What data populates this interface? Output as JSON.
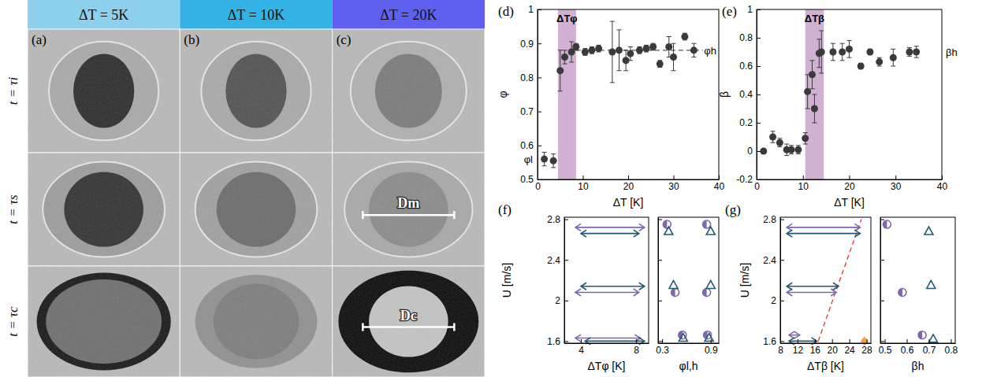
{
  "photos": {
    "columns": [
      {
        "label": "(a)",
        "title": "ΔT = 5K",
        "color": "#8dd0ee"
      },
      {
        "label": "(b)",
        "title": "ΔT = 10K",
        "color": "#33b2e5"
      },
      {
        "label": "(c)",
        "title": "ΔT = 20K",
        "color": "#5f5ff0",
        "cells": [
          null,
          "Dm",
          "Dc"
        ]
      }
    ],
    "rows": [
      "t = τi",
      "t = τs",
      "t = τc"
    ]
  },
  "chart_data": [
    {
      "type": "scatter",
      "panel": "(d)",
      "x_label": "ΔT [K]",
      "y_label": "φ",
      "xlim": [
        0,
        40
      ],
      "xticks": [
        0,
        10,
        20,
        30,
        40
      ],
      "ylim": [
        0.5,
        1
      ],
      "yticks": [
        0.5,
        0.6,
        0.7,
        0.8,
        0.9,
        1
      ],
      "band": {
        "range": [
          4.5,
          8.5
        ],
        "label": "ΔTφ",
        "color": "#c9a3c9"
      },
      "levels": {
        "low": {
          "label": "φl",
          "value": 0.56
        },
        "high": {
          "label": "φh",
          "value": 0.88,
          "line_style": "dashed",
          "range": [
            8.5,
            36.5
          ]
        }
      },
      "series": [
        {
          "color": "#3a3a3a",
          "marker": "circle",
          "x": [
            1.5,
            3.5,
            5,
            6,
            7.5,
            8.5,
            10.5,
            12,
            13.5,
            16.5,
            18,
            19.5,
            20.5,
            22.5,
            24,
            25.5,
            27,
            29,
            30,
            32.5,
            34.5
          ],
          "values": [
            0.56,
            0.555,
            0.82,
            0.86,
            0.875,
            0.89,
            0.875,
            0.88,
            0.885,
            0.875,
            0.88,
            0.85,
            0.87,
            0.88,
            0.885,
            0.89,
            0.84,
            0.89,
            0.86,
            0.92,
            0.88
          ],
          "errors": [
            0.02,
            0.02,
            0.06,
            0.02,
            0.03,
            0.01,
            0.01,
            0.01,
            0.01,
            0.09,
            0.06,
            0.03,
            0.02,
            0.01,
            0.01,
            0.01,
            0.01,
            0.03,
            0.04,
            0.01,
            0.02
          ]
        }
      ]
    },
    {
      "type": "scatter",
      "panel": "(e)",
      "x_label": "ΔT [K]",
      "y_label": "β",
      "xlim": [
        0,
        40
      ],
      "xticks": [
        0,
        10,
        20,
        30,
        40
      ],
      "ylim": [
        -0.2,
        1
      ],
      "yticks": [
        -0.2,
        0,
        0.2,
        0.4,
        0.6,
        0.8,
        1
      ],
      "band": {
        "range": [
          10.5,
          14.5
        ],
        "label": "ΔTβ",
        "color": "#c9a3c9"
      },
      "levels": {
        "high": {
          "label": "βh",
          "value": 0.7
        }
      },
      "series": [
        {
          "color": "#3a3a3a",
          "marker": "circle",
          "x": [
            1.5,
            3.5,
            5,
            6.5,
            7.5,
            9,
            10.5,
            11,
            12,
            12.5,
            13.5,
            14,
            16.5,
            18.5,
            20,
            22.5,
            24.5,
            26.5,
            29.5,
            33,
            34.5
          ],
          "values": [
            0,
            0.1,
            0.06,
            0.01,
            0.01,
            0.01,
            0.09,
            0.42,
            0.54,
            0.3,
            0.69,
            0.7,
            0.7,
            0.7,
            0.72,
            0.6,
            0.7,
            0.63,
            0.66,
            0.7,
            0.7
          ],
          "errors": [
            0.01,
            0.04,
            0.03,
            0.04,
            0.03,
            0.03,
            0.04,
            0.12,
            0.1,
            0.1,
            0.1,
            0.15,
            0.06,
            0.06,
            0.06,
            0.02,
            0.02,
            0.03,
            0.06,
            0.03,
            0.04
          ]
        }
      ]
    },
    {
      "type": "range",
      "panel": "(f)",
      "x_label": "ΔTφ [K]",
      "y_label": "U [m/s]",
      "xlim": [
        2.8,
        8.9
      ],
      "xticks": [
        4,
        8
      ],
      "ylim": [
        1.58,
        2.82
      ],
      "yticks": [
        1.6,
        2,
        2.4,
        2.8
      ],
      "series": [
        {
          "color": "#7f66b0",
          "marker": "double_arrow",
          "values": [
            2.72,
            2.08,
            1.63
          ],
          "low": [
            3.6,
            3.6,
            3.6
          ],
          "high": [
            8.6,
            8.2,
            8.3
          ]
        },
        {
          "color": "#1f5a6e",
          "marker": "double_arrow",
          "values": [
            2.66,
            2.14,
            1.6
          ],
          "low": [
            4,
            4,
            4.3
          ],
          "high": [
            8.2,
            8.6,
            8.6
          ]
        }
      ]
    },
    {
      "type": "scatter",
      "x_label": "φl,h",
      "tick_labels": "x",
      "xlim": [
        0.25,
        1
      ],
      "xticks": [
        0.3,
        0.9
      ],
      "ylim": [
        1.58,
        2.82
      ],
      "yticks": [
        1.6,
        2,
        2.4,
        2.8
      ],
      "series": [
        {
          "color": "#7f66b0",
          "marker": "half_circle",
          "x": [
            0.36,
            0.85,
            0.46,
            0.85,
            0.55,
            0.86
          ],
          "values": [
            2.75,
            2.75,
            2.08,
            2.08,
            1.66,
            1.66
          ]
        },
        {
          "color": "#1f5a6e",
          "marker": "triangle",
          "x": [
            0.38,
            0.9,
            0.44,
            0.9,
            0.56,
            0.88
          ],
          "values": [
            2.68,
            2.68,
            2.15,
            2.15,
            1.63,
            1.63
          ]
        }
      ]
    },
    {
      "type": "range",
      "panel": "(g)",
      "x_label": "ΔTβ [K]",
      "y_label": "U [m/s]",
      "xlim": [
        8,
        29
      ],
      "xticks": [
        8,
        12,
        16,
        20,
        24,
        28
      ],
      "ylim": [
        1.58,
        2.82
      ],
      "yticks": [
        1.6,
        2,
        2.4,
        2.8
      ],
      "trend": {
        "x": [
          16.8,
          26.8
        ],
        "values": [
          1.6,
          2.8
        ],
        "color": "#e8413c",
        "line_style": "dashed"
      },
      "point": {
        "x": 27.5,
        "value": 1.6,
        "color": "#f5a04a",
        "marker": "diamond"
      },
      "series": [
        {
          "color": "#7f66b0",
          "marker": "double_arrow",
          "values": [
            2.72,
            2.08,
            1.66
          ],
          "low": [
            9.5,
            9.5,
            10
          ],
          "high": [
            26.5,
            21,
            12.5
          ]
        },
        {
          "color": "#1f5a6e",
          "marker": "double_arrow",
          "values": [
            2.66,
            2.14,
            1.6
          ],
          "low": [
            9.5,
            9.5,
            10
          ],
          "high": [
            26.5,
            21.5,
            16.5
          ]
        }
      ]
    },
    {
      "type": "scatter",
      "x_label": "βh",
      "tick_labels": "x",
      "xlim": [
        0.48,
        0.82
      ],
      "xticks": [
        0.5,
        0.6,
        0.7,
        0.8
      ],
      "ylim": [
        1.58,
        2.82
      ],
      "yticks": [
        1.6,
        2,
        2.4,
        2.8
      ],
      "series": [
        {
          "color": "#7f66b0",
          "marker": "half_circle",
          "x": [
            0.51,
            0.58,
            0.67
          ],
          "values": [
            2.75,
            2.08,
            1.66
          ]
        },
        {
          "color": "#1f5a6e",
          "marker": "triangle",
          "x": [
            0.7,
            0.71,
            0.72
          ],
          "values": [
            2.68,
            2.15,
            1.62
          ]
        }
      ]
    }
  ]
}
